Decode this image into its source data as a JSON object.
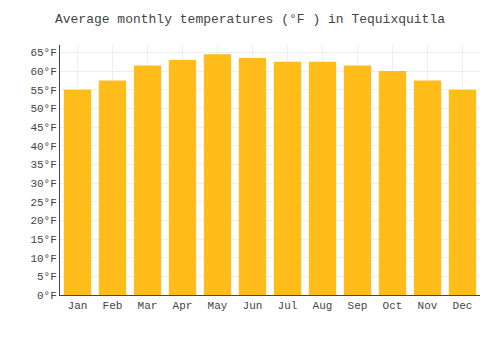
{
  "chart_data": {
    "type": "bar",
    "title": "Average monthly temperatures (°F ) in Tequixquitla",
    "categories": [
      "Jan",
      "Feb",
      "Mar",
      "Apr",
      "May",
      "Jun",
      "Jul",
      "Aug",
      "Sep",
      "Oct",
      "Nov",
      "Dec"
    ],
    "values": [
      55,
      57.5,
      61.5,
      63,
      64.5,
      63.5,
      62.5,
      62.5,
      61.5,
      60,
      57.5,
      55
    ],
    "color": "#FFBC1A",
    "ylim": [
      0,
      67
    ],
    "yticks": [
      {
        "value": 0,
        "label": "0°F"
      },
      {
        "value": 5,
        "label": "5°F"
      },
      {
        "value": 10,
        "label": "10°F"
      },
      {
        "value": 15,
        "label": "15°F"
      },
      {
        "value": 20,
        "label": "20°F"
      },
      {
        "value": 25,
        "label": "25°F"
      },
      {
        "value": 30,
        "label": "30°F"
      },
      {
        "value": 35,
        "label": "35°F"
      },
      {
        "value": 40,
        "label": "40°F"
      },
      {
        "value": 45,
        "label": "45°F"
      },
      {
        "value": 50,
        "label": "50°F"
      },
      {
        "value": 55,
        "label": "55°F"
      },
      {
        "value": 60,
        "label": "60°F"
      },
      {
        "value": 65,
        "label": "65°F"
      }
    ],
    "grid": true
  }
}
